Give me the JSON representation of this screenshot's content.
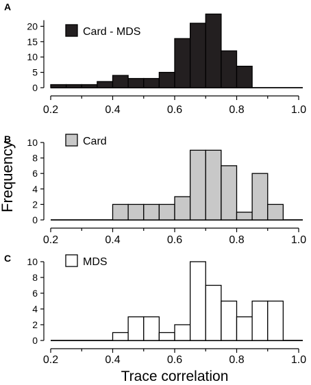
{
  "figure": {
    "ylabel": "Frequency",
    "xlabel": "Trace correlation"
  },
  "chart_data": [
    {
      "panel_letter": "A",
      "type": "bar",
      "histogram": true,
      "bin_edges": [
        0.2,
        0.25,
        0.3,
        0.35,
        0.4,
        0.45,
        0.5,
        0.55,
        0.6,
        0.65,
        0.7,
        0.75,
        0.8,
        0.85
      ],
      "values": [
        1,
        1,
        1,
        2,
        4,
        3,
        3,
        5,
        16,
        21,
        24,
        12,
        7
      ],
      "series": [
        {
          "name": "Card - MDS",
          "color": "#231f20"
        }
      ],
      "xlim": [
        0.2,
        1.0
      ],
      "ylim": [
        0,
        25
      ],
      "xticks": [
        "0.2",
        "0.4",
        "0.6",
        "0.8",
        "1.0"
      ],
      "yticks": [
        "0",
        "5",
        "10",
        "15",
        "20"
      ],
      "legend_position": "top-left"
    },
    {
      "panel_letter": "B",
      "type": "bar",
      "histogram": true,
      "bin_edges": [
        0.4,
        0.45,
        0.5,
        0.55,
        0.6,
        0.65,
        0.7,
        0.75,
        0.8,
        0.85,
        0.9,
        0.95
      ],
      "values": [
        2,
        2,
        2,
        2,
        3,
        9,
        9,
        7,
        1,
        6,
        2
      ],
      "series": [
        {
          "name": "Card",
          "color": "#c8c8c8"
        }
      ],
      "xlim": [
        0.2,
        1.0
      ],
      "ylim": [
        0,
        10
      ],
      "xticks": [
        "0.2",
        "0.4",
        "0.6",
        "0.8",
        "1.0"
      ],
      "yticks": [
        "0",
        "2",
        "4",
        "6",
        "8",
        "10"
      ],
      "legend_position": "top-left"
    },
    {
      "panel_letter": "C",
      "type": "bar",
      "histogram": true,
      "bin_edges": [
        0.4,
        0.45,
        0.5,
        0.55,
        0.6,
        0.65,
        0.7,
        0.75,
        0.8,
        0.85,
        0.9,
        0.95
      ],
      "values": [
        1,
        3,
        3,
        1,
        2,
        10,
        7,
        5,
        3,
        5,
        5
      ],
      "series": [
        {
          "name": "MDS",
          "color": "#ffffff"
        }
      ],
      "xlim": [
        0.2,
        1.0
      ],
      "ylim": [
        0,
        10
      ],
      "xticks": [
        "0.2",
        "0.4",
        "0.6",
        "0.8",
        "1.0"
      ],
      "yticks": [
        "0",
        "2",
        "4",
        "6",
        "8",
        "10"
      ],
      "legend_position": "top-left"
    }
  ]
}
